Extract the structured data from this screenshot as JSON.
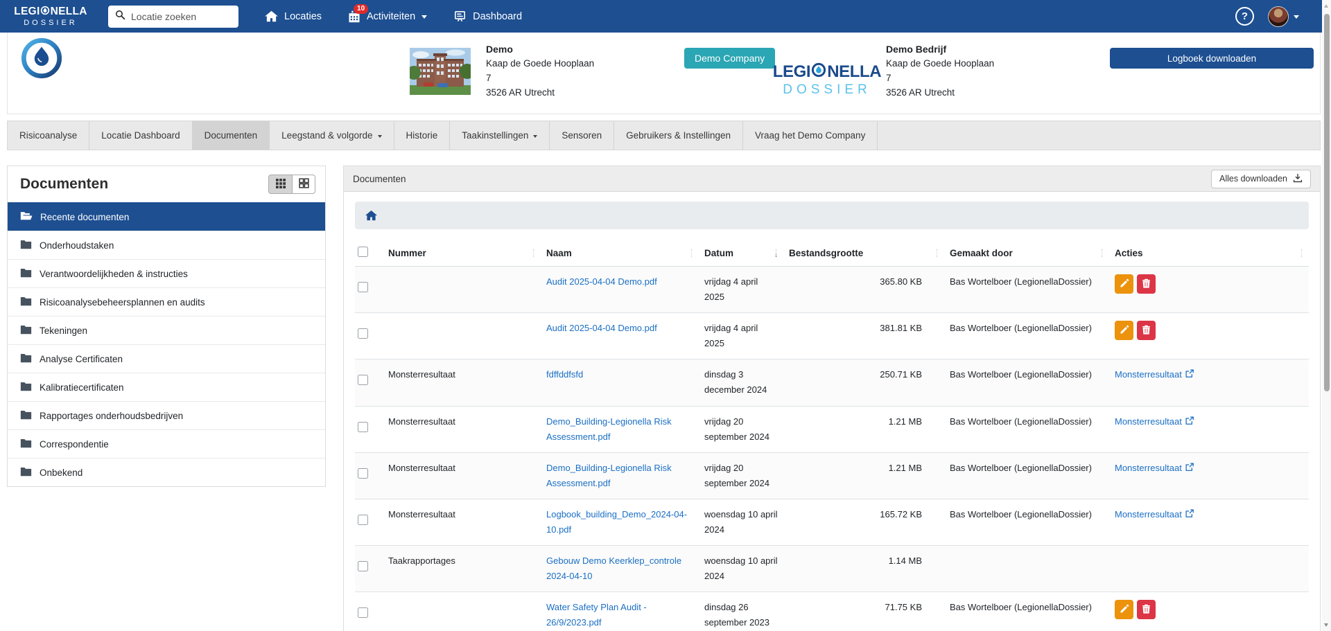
{
  "navbar": {
    "brand": {
      "line1_pre": "LEGI",
      "line1_post": "NELLA",
      "line2": "DOSSIER"
    },
    "search_placeholder": "Locatie zoeken",
    "items": [
      {
        "id": "locaties",
        "label": "Locaties",
        "icon": "home-icon",
        "badge": null,
        "caret": false
      },
      {
        "id": "activiteiten",
        "label": "Activiteiten",
        "icon": "calendar-icon",
        "badge": "10",
        "caret": true
      },
      {
        "id": "dashboard",
        "label": "Dashboard",
        "icon": "chart-board-icon",
        "badge": null,
        "caret": false
      }
    ],
    "help_label": "?"
  },
  "header": {
    "location": {
      "name": "Demo",
      "address_lines": [
        "Kaap de Goede Hooplaan",
        "7",
        "3526 AR Utrecht"
      ]
    },
    "company_badge": "Demo Company",
    "brand_logo": {
      "line1_pre": "LEGI",
      "line1_post": "NELLA",
      "line2": "DOSSIER"
    },
    "company": {
      "name": "Demo Bedrijf",
      "address_lines": [
        "Kaap de Goede Hooplaan",
        "7",
        "3526 AR Utrecht"
      ]
    },
    "download_button": "Logboek downloaden"
  },
  "tabs": [
    {
      "label": "Risicoanalyse",
      "active": false,
      "caret": false
    },
    {
      "label": "Locatie Dashboard",
      "active": false,
      "caret": false
    },
    {
      "label": "Documenten",
      "active": true,
      "caret": false
    },
    {
      "label": "Leegstand & volgorde",
      "active": false,
      "caret": true
    },
    {
      "label": "Historie",
      "active": false,
      "caret": false
    },
    {
      "label": "Taakinstellingen",
      "active": false,
      "caret": true
    },
    {
      "label": "Sensoren",
      "active": false,
      "caret": false
    },
    {
      "label": "Gebruikers & Instellingen",
      "active": false,
      "caret": false
    },
    {
      "label": "Vraag het Demo Company",
      "active": false,
      "caret": false
    }
  ],
  "sidebar": {
    "title": "Documenten",
    "folders": [
      {
        "label": "Recente documenten",
        "active": true
      },
      {
        "label": "Onderhoudstaken",
        "active": false
      },
      {
        "label": "Verantwoordelijkheden & instructies",
        "active": false
      },
      {
        "label": "Risicoanalysebeheersplannen en audits",
        "active": false
      },
      {
        "label": "Tekeningen",
        "active": false
      },
      {
        "label": "Analyse Certificaten",
        "active": false
      },
      {
        "label": "Kalibratiecertificaten",
        "active": false
      },
      {
        "label": "Rapportages onderhoudsbedrijven",
        "active": false
      },
      {
        "label": "Correspondentie",
        "active": false
      },
      {
        "label": "Onbekend",
        "active": false
      }
    ]
  },
  "main": {
    "panel_title": "Documenten",
    "download_all_label": "Alles downloaden",
    "columns": [
      {
        "label": "Nummer",
        "sort": null
      },
      {
        "label": "Naam",
        "sort": null
      },
      {
        "label": "Datum",
        "sort": "desc"
      },
      {
        "label": "Bestandsgrootte",
        "sort": null
      },
      {
        "label": "Gemaakt door",
        "sort": null
      },
      {
        "label": "Acties",
        "sort": null
      }
    ],
    "rows": [
      {
        "nummer": "",
        "naam": "Audit 2025-04-04 Demo.pdf",
        "datum": "vrijdag 4 april 2025",
        "grootte": "365.80 KB",
        "gemaakt_door": "Bas Wortelboer (LegionellaDossier)",
        "acties": {
          "type": "buttons"
        }
      },
      {
        "nummer": "",
        "naam": "Audit 2025-04-04 Demo.pdf",
        "datum": "vrijdag 4 april 2025",
        "grootte": "381.81 KB",
        "gemaakt_door": "Bas Wortelboer (LegionellaDossier)",
        "acties": {
          "type": "buttons"
        }
      },
      {
        "nummer": "Monsterresultaat",
        "naam": "fdffddfsfd",
        "datum": "dinsdag 3 december 2024",
        "grootte": "250.71 KB",
        "gemaakt_door": "Bas Wortelboer (LegionellaDossier)",
        "acties": {
          "type": "link",
          "label": "Monsterresultaat"
        }
      },
      {
        "nummer": "Monsterresultaat",
        "naam": "Demo_Building-Legionella Risk Assessment.pdf",
        "datum": "vrijdag 20 september 2024",
        "grootte": "1.21 MB",
        "gemaakt_door": "Bas Wortelboer (LegionellaDossier)",
        "acties": {
          "type": "link",
          "label": "Monsterresultaat"
        }
      },
      {
        "nummer": "Monsterresultaat",
        "naam": "Demo_Building-Legionella Risk Assessment.pdf",
        "datum": "vrijdag 20 september 2024",
        "grootte": "1.21 MB",
        "gemaakt_door": "Bas Wortelboer (LegionellaDossier)",
        "acties": {
          "type": "link",
          "label": "Monsterresultaat"
        }
      },
      {
        "nummer": "Monsterresultaat",
        "naam": "Logbook_building_Demo_2024-04-10.pdf",
        "datum": "woensdag 10 april 2024",
        "grootte": "165.72 KB",
        "gemaakt_door": "Bas Wortelboer (LegionellaDossier)",
        "acties": {
          "type": "link",
          "label": "Monsterresultaat"
        }
      },
      {
        "nummer": "Taakrapportages",
        "naam": "Gebouw Demo Keerklep_controle 2024-04-10",
        "datum": "woensdag 10 april 2024",
        "grootte": "1.14 MB",
        "gemaakt_door": "",
        "acties": {
          "type": "none"
        }
      },
      {
        "nummer": "",
        "naam": "Water Safety Plan Audit - 26/9/2023.pdf",
        "datum": "dinsdag 26 september 2023",
        "grootte": "71.75 KB",
        "gemaakt_door": "Bas Wortelboer (LegionellaDossier)",
        "acties": {
          "type": "buttons"
        }
      }
    ]
  },
  "colors": {
    "navbar_blue": "#1d4f91",
    "accent_teal": "#2aa6b4",
    "link_blue": "#1a6fc4",
    "warning_orange": "#ec920c",
    "danger_red": "#dc3545",
    "badge_red": "#e02b2b",
    "logo_dark_blue": "#1b4a8a",
    "logo_light_blue": "#5bc2ea"
  }
}
